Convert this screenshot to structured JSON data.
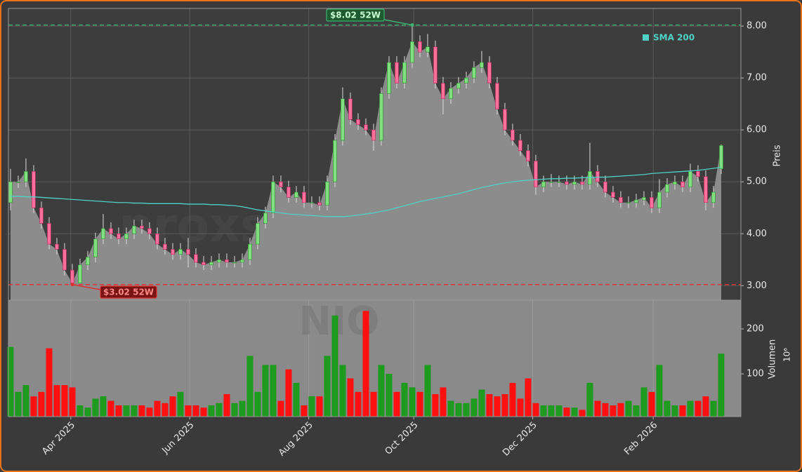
{
  "chart_data": {
    "type": "candlestick",
    "symbol": "NIO",
    "watermark": "proxsignale.trade",
    "ylabel": "Preis",
    "volume_label": "Volumen",
    "volume_scale": "10⁶",
    "open": [
      4.6,
      5.0,
      5.0,
      5.2,
      4.5,
      4.2,
      3.8,
      3.7,
      3.3,
      3.05,
      3.4,
      3.55,
      3.9,
      4.1,
      4.0,
      3.9,
      4.0,
      4.15,
      4.1,
      4.0,
      3.8,
      3.7,
      3.6,
      3.7,
      3.6,
      3.45,
      3.4,
      3.45,
      3.5,
      3.45,
      3.45,
      3.5,
      3.8,
      4.2,
      4.4,
      5.0,
      4.9,
      4.7,
      4.8,
      4.6,
      4.6,
      4.55,
      5.0,
      5.8,
      6.6,
      6.2,
      6.1,
      6.0,
      5.8,
      6.7,
      7.3,
      6.9,
      7.3,
      7.7,
      7.5,
      7.6,
      6.9,
      6.6,
      6.8,
      6.9,
      7.0,
      7.2,
      7.3,
      6.9,
      6.4,
      6.0,
      5.8,
      5.6,
      5.4,
      4.9,
      5.0,
      5.0,
      5.0,
      4.95,
      5.0,
      4.95,
      5.2,
      5.0,
      4.8,
      4.7,
      4.6,
      4.6,
      4.65,
      4.7,
      4.5,
      4.8,
      4.95,
      5.0,
      4.9,
      5.2,
      5.1,
      4.6,
      5.25
    ],
    "high": [
      5.25,
      5.12,
      5.45,
      5.32,
      4.62,
      4.32,
      3.92,
      3.82,
      3.42,
      3.52,
      3.67,
      4.02,
      4.38,
      4.22,
      4.12,
      4.12,
      4.27,
      4.27,
      4.22,
      4.12,
      3.92,
      3.82,
      3.82,
      3.92,
      3.72,
      3.57,
      3.57,
      3.62,
      3.62,
      3.57,
      3.62,
      3.92,
      4.32,
      4.52,
      5.12,
      5.12,
      5.02,
      4.92,
      4.92,
      4.72,
      4.72,
      5.12,
      5.92,
      6.82,
      6.72,
      6.32,
      6.22,
      6.12,
      6.82,
      7.42,
      7.42,
      7.42,
      8.02,
      7.82,
      7.85,
      7.72,
      7.02,
      6.92,
      7.02,
      7.12,
      7.32,
      7.52,
      7.42,
      7.02,
      6.52,
      6.12,
      5.92,
      5.72,
      5.52,
      5.12,
      5.15,
      5.12,
      5.12,
      5.12,
      5.12,
      5.75,
      5.32,
      5.12,
      4.92,
      4.82,
      4.72,
      4.77,
      4.82,
      4.82,
      5.05,
      5.07,
      5.12,
      5.12,
      5.35,
      5.32,
      5.22,
      4.92,
      5.72
    ],
    "low": [
      4.45,
      4.88,
      4.9,
      4.4,
      4.1,
      3.7,
      3.6,
      3.2,
      3.02,
      3.04,
      3.3,
      3.45,
      3.8,
      3.9,
      3.8,
      3.8,
      3.9,
      4.0,
      3.9,
      3.7,
      3.6,
      3.5,
      3.5,
      3.35,
      3.35,
      3.3,
      3.3,
      3.35,
      3.35,
      3.35,
      3.35,
      3.4,
      3.7,
      4.1,
      4.3,
      4.8,
      4.6,
      4.6,
      4.5,
      4.5,
      4.45,
      4.45,
      4.9,
      5.7,
      6.1,
      6.0,
      5.9,
      5.6,
      5.7,
      6.6,
      6.8,
      6.8,
      7.2,
      7.4,
      7.4,
      6.8,
      6.3,
      6.5,
      6.7,
      6.8,
      6.9,
      7.1,
      6.8,
      6.3,
      5.9,
      5.7,
      5.5,
      5.3,
      4.75,
      4.8,
      4.9,
      4.9,
      4.85,
      4.85,
      4.85,
      4.85,
      4.9,
      4.7,
      4.6,
      4.5,
      4.5,
      4.5,
      4.55,
      4.4,
      4.4,
      4.7,
      4.85,
      4.8,
      4.8,
      5.0,
      4.45,
      4.5,
      5.15
    ],
    "close": [
      5.0,
      5.0,
      5.2,
      4.5,
      4.2,
      3.8,
      3.7,
      3.3,
      3.05,
      3.4,
      3.55,
      3.9,
      4.1,
      4.0,
      3.9,
      4.0,
      4.15,
      4.1,
      4.0,
      3.8,
      3.7,
      3.6,
      3.7,
      3.6,
      3.45,
      3.4,
      3.45,
      3.5,
      3.45,
      3.45,
      3.5,
      3.8,
      4.2,
      4.4,
      5.0,
      4.9,
      4.7,
      4.8,
      4.6,
      4.6,
      4.55,
      5.0,
      5.8,
      6.6,
      6.2,
      6.1,
      6.0,
      5.8,
      6.7,
      7.3,
      6.9,
      7.3,
      7.7,
      7.5,
      7.6,
      6.9,
      6.6,
      6.8,
      6.9,
      7.0,
      7.2,
      7.3,
      6.9,
      6.4,
      6.0,
      5.8,
      5.6,
      5.4,
      4.9,
      5.0,
      5.0,
      5.0,
      4.95,
      5.0,
      4.95,
      5.2,
      5.0,
      4.8,
      4.7,
      4.6,
      4.6,
      4.65,
      4.7,
      4.5,
      4.8,
      4.95,
      5.0,
      4.9,
      5.2,
      5.1,
      4.6,
      4.8,
      5.7
    ],
    "volume": [
      160,
      60,
      75,
      50,
      60,
      157,
      75,
      75,
      70,
      30,
      25,
      45,
      50,
      40,
      30,
      30,
      30,
      30,
      25,
      40,
      35,
      50,
      60,
      30,
      30,
      25,
      30,
      35,
      55,
      35,
      40,
      140,
      60,
      120,
      120,
      40,
      110,
      80,
      30,
      50,
      50,
      140,
      230,
      120,
      90,
      60,
      240,
      60,
      120,
      100,
      60,
      80,
      70,
      60,
      120,
      55,
      70,
      40,
      35,
      35,
      45,
      65,
      55,
      50,
      55,
      80,
      45,
      90,
      35,
      30,
      30,
      30,
      25,
      25,
      20,
      80,
      40,
      35,
      30,
      35,
      40,
      30,
      70,
      60,
      120,
      40,
      30,
      30,
      40,
      40,
      50,
      40,
      145
    ],
    "series": [
      {
        "name": "SMA 200",
        "color": "#4fd1c5",
        "values": [
          4.72,
          4.72,
          4.71,
          4.71,
          4.7,
          4.69,
          4.68,
          4.67,
          4.66,
          4.65,
          4.64,
          4.63,
          4.62,
          4.61,
          4.6,
          4.6,
          4.59,
          4.59,
          4.58,
          4.58,
          4.58,
          4.58,
          4.58,
          4.57,
          4.57,
          4.57,
          4.56,
          4.56,
          4.55,
          4.54,
          4.52,
          4.49,
          4.46,
          4.44,
          4.42,
          4.4,
          4.38,
          4.37,
          4.36,
          4.35,
          4.34,
          4.33,
          4.33,
          4.33,
          4.34,
          4.36,
          4.38,
          4.4,
          4.43,
          4.46,
          4.5,
          4.54,
          4.58,
          4.62,
          4.65,
          4.68,
          4.71,
          4.74,
          4.77,
          4.81,
          4.85,
          4.89,
          4.92,
          4.95,
          4.98,
          5.0,
          5.02,
          5.03,
          5.04,
          5.05,
          5.06,
          5.06,
          5.07,
          5.07,
          5.08,
          5.08,
          5.09,
          5.09,
          5.1,
          5.11,
          5.12,
          5.13,
          5.14,
          5.16,
          5.17,
          5.18,
          5.19,
          5.2,
          5.21,
          5.22,
          5.24,
          5.26,
          5.28
        ]
      }
    ],
    "high_52w": {
      "label": "$8.02 52W",
      "value": 8.02,
      "color": "#3cb371"
    },
    "low_52w": {
      "label": "$3.02 52W",
      "value": 3.02,
      "color": "#e03030"
    },
    "up_color": "#7fe07f",
    "down_color": "#ff6f9c",
    "volume_up_color": "#1e9a1e",
    "volume_down_color": "#ff1010",
    "area_color": "#8c8c8c",
    "xlim": [
      -0.27,
      94.55
    ],
    "xticks": [
      {
        "value": 7.8,
        "label": "Apr 2025"
      },
      {
        "value": 23.2,
        "label": "Jun 2025"
      },
      {
        "value": 38.6,
        "label": "Aug 2025"
      },
      {
        "value": 52.2,
        "label": "Oct 2025"
      },
      {
        "value": 67.6,
        "label": "Dec 2025"
      },
      {
        "value": 83.2,
        "label": "Feb 2026"
      }
    ],
    "ylim": [
      2.72,
      8.34
    ],
    "yticks": [
      {
        "value": 3,
        "label": "3.00"
      },
      {
        "value": 4,
        "label": "4.00"
      },
      {
        "value": 5,
        "label": "5.00"
      },
      {
        "value": 6,
        "label": "6.00"
      },
      {
        "value": 7,
        "label": "7.00"
      },
      {
        "value": 8,
        "label": "8.00"
      }
    ],
    "y2lim": [
      5,
      264
    ],
    "y2ticks": [
      100,
      200
    ],
    "grid": true,
    "legend": "upper right"
  }
}
